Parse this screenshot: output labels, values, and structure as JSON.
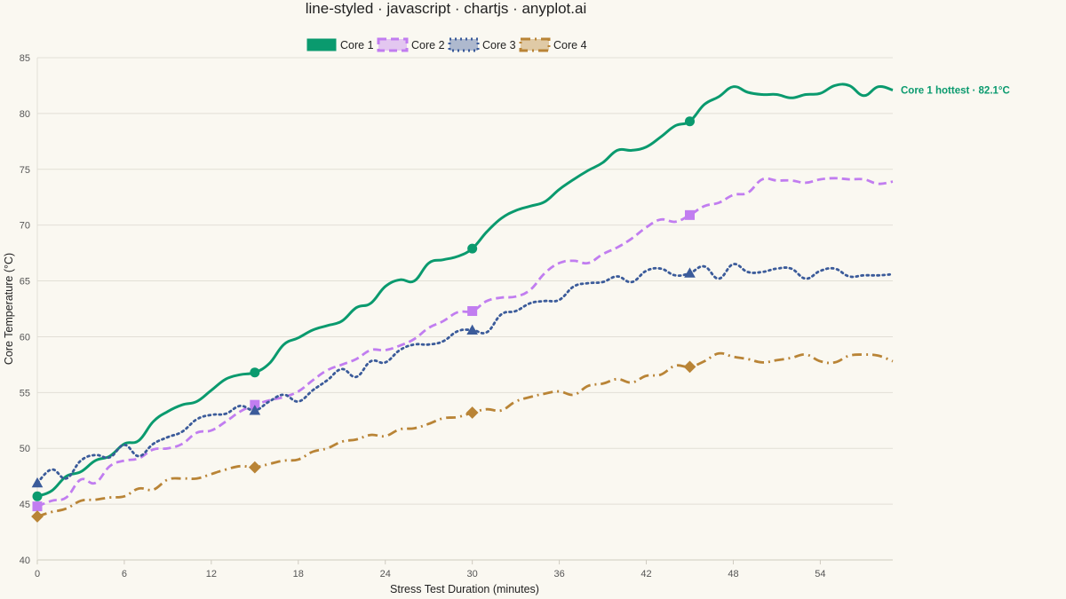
{
  "chart_data": {
    "type": "line",
    "title": "line-styled · javascript · chartjs · anyplot.ai",
    "xlabel": "Stress Test Duration (minutes)",
    "ylabel": "Core Temperature (°C)",
    "xlim": [
      0,
      59
    ],
    "ylim": [
      40,
      85
    ],
    "x_ticks": [
      0,
      6,
      12,
      18,
      24,
      30,
      36,
      42,
      48,
      54
    ],
    "y_ticks": [
      40,
      45,
      50,
      55,
      60,
      65,
      70,
      75,
      80,
      85
    ],
    "grid": "horizontal",
    "legend_position": "top-center",
    "x": [
      0,
      1,
      2,
      3,
      4,
      5,
      6,
      7,
      8,
      9,
      10,
      11,
      12,
      13,
      14,
      15,
      16,
      17,
      18,
      19,
      20,
      21,
      22,
      23,
      24,
      25,
      26,
      27,
      28,
      29,
      30,
      31,
      32,
      33,
      34,
      35,
      36,
      37,
      38,
      39,
      40,
      41,
      42,
      43,
      44,
      45,
      46,
      47,
      48,
      49,
      50,
      51,
      52,
      53,
      54,
      55,
      56,
      57,
      58,
      59
    ],
    "series": [
      {
        "name": "Core 1",
        "color": "#0a9a6e",
        "line_style": "solid",
        "marker": "circle",
        "values": [
          45.7,
          46.2,
          47.5,
          47.9,
          48.9,
          49.3,
          50.4,
          50.7,
          52.4,
          53.3,
          53.9,
          54.2,
          55.2,
          56.2,
          56.6,
          56.8,
          57.6,
          59.3,
          59.9,
          60.6,
          61.0,
          61.4,
          62.6,
          63.0,
          64.5,
          65.1,
          65.0,
          66.6,
          66.9,
          67.2,
          67.9,
          69.4,
          70.6,
          71.3,
          71.7,
          72.1,
          73.2,
          74.1,
          74.9,
          75.6,
          76.7,
          76.7,
          77.0,
          77.9,
          78.9,
          79.3,
          80.8,
          81.5,
          82.4,
          81.9,
          81.7,
          81.7,
          81.4,
          81.7,
          81.8,
          82.5,
          82.5,
          81.6,
          82.4,
          82.1
        ]
      },
      {
        "name": "Core 2",
        "color": "#c17df0",
        "line_style": "dashed",
        "marker": "square",
        "values": [
          44.8,
          45.3,
          45.6,
          47.2,
          46.9,
          48.4,
          48.9,
          49.1,
          49.9,
          50.0,
          50.4,
          51.4,
          51.6,
          52.4,
          53.3,
          53.9,
          54.3,
          54.6,
          55.1,
          56.1,
          57.0,
          57.5,
          58.0,
          58.8,
          58.8,
          59.2,
          59.8,
          60.8,
          61.4,
          62.2,
          62.3,
          63.2,
          63.5,
          63.6,
          64.2,
          65.7,
          66.6,
          66.8,
          66.6,
          67.4,
          68.0,
          68.8,
          69.8,
          70.5,
          70.3,
          70.9,
          71.7,
          72.0,
          72.7,
          72.9,
          74.1,
          74.0,
          74.0,
          73.8,
          74.1,
          74.2,
          74.1,
          74.1,
          73.7,
          73.9
        ]
      },
      {
        "name": "Core 3",
        "color": "#3b5b9a",
        "line_style": "dotted",
        "marker": "triangle",
        "values": [
          46.9,
          48.1,
          47.3,
          48.9,
          49.4,
          49.2,
          50.3,
          49.3,
          50.4,
          51.0,
          51.5,
          52.6,
          53.0,
          53.1,
          53.8,
          53.4,
          54.2,
          54.8,
          54.2,
          55.2,
          56.1,
          57.1,
          56.4,
          57.8,
          57.7,
          58.8,
          59.3,
          59.3,
          59.6,
          60.5,
          60.6,
          60.4,
          62.0,
          62.3,
          63.0,
          63.2,
          63.3,
          64.5,
          64.8,
          64.9,
          65.4,
          64.9,
          65.9,
          66.1,
          65.5,
          65.7,
          66.3,
          65.2,
          66.5,
          65.8,
          65.8,
          66.1,
          66.1,
          65.2,
          65.9,
          66.1,
          65.4,
          65.5,
          65.5,
          65.6
        ]
      },
      {
        "name": "Core 4",
        "color": "#b98436",
        "line_style": "dash-dot",
        "marker": "diamond",
        "values": [
          43.9,
          44.3,
          44.6,
          45.3,
          45.4,
          45.6,
          45.7,
          46.4,
          46.3,
          47.2,
          47.3,
          47.3,
          47.7,
          48.1,
          48.4,
          48.3,
          48.6,
          48.9,
          49.0,
          49.7,
          50.0,
          50.6,
          50.8,
          51.2,
          51.1,
          51.7,
          51.8,
          52.2,
          52.7,
          52.8,
          53.2,
          53.5,
          53.4,
          54.2,
          54.6,
          54.9,
          55.1,
          54.8,
          55.6,
          55.8,
          56.2,
          55.9,
          56.5,
          56.6,
          57.4,
          57.3,
          57.8,
          58.5,
          58.2,
          58.0,
          57.7,
          57.9,
          58.1,
          58.4,
          57.8,
          57.7,
          58.3,
          58.4,
          58.3,
          57.8
        ]
      }
    ],
    "annotation": {
      "text": "Core 1 hottest · 82.1°C",
      "series": "Core 1",
      "x": 59,
      "y": 82.1
    }
  }
}
